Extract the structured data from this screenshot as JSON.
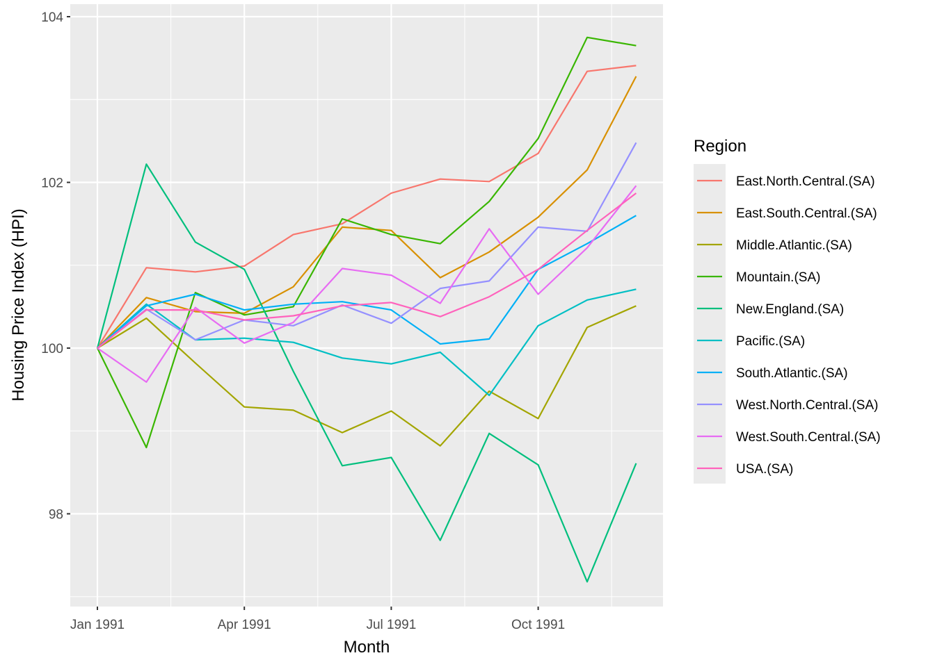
{
  "chart_data": {
    "type": "line",
    "title": "",
    "xlabel": "Month",
    "ylabel": "Housing Price Index (HPI)",
    "x": [
      "Jan 1991",
      "Feb 1991",
      "Mar 1991",
      "Apr 1991",
      "May 1991",
      "Jun 1991",
      "Jul 1991",
      "Aug 1991",
      "Sep 1991",
      "Oct 1991",
      "Nov 1991",
      "Dec 1991"
    ],
    "x_ticks": [
      "Jan 1991",
      "Apr 1991",
      "Jul 1991",
      "Oct 1991"
    ],
    "y_ticks": [
      98,
      100,
      102,
      104
    ],
    "ylim": [
      96.9,
      104.05
    ],
    "grid": true,
    "legend_title": "Region",
    "legend_position": "right",
    "series": [
      {
        "name": "East.North.Central.(SA)",
        "color": "#F8766D",
        "values": [
          100.0,
          100.97,
          100.92,
          100.99,
          101.37,
          101.5,
          101.87,
          102.04,
          102.01,
          102.35,
          103.34,
          103.41
        ]
      },
      {
        "name": "East.South.Central.(SA)",
        "color": "#D89000",
        "values": [
          100.0,
          100.61,
          100.44,
          100.42,
          100.74,
          101.46,
          101.42,
          100.85,
          101.16,
          101.58,
          102.15,
          103.28
        ]
      },
      {
        "name": "Middle.Atlantic.(SA)",
        "color": "#A3A500",
        "values": [
          100.0,
          100.36,
          99.82,
          99.29,
          99.25,
          98.98,
          99.24,
          98.82,
          99.48,
          99.15,
          100.25,
          100.51
        ]
      },
      {
        "name": "Mountain.(SA)",
        "color": "#39B600",
        "values": [
          100.0,
          98.8,
          100.67,
          100.4,
          100.5,
          101.56,
          101.37,
          101.26,
          101.77,
          102.53,
          103.75,
          103.65
        ]
      },
      {
        "name": "New.England.(SA)",
        "color": "#00BF7D",
        "values": [
          100.0,
          102.22,
          101.28,
          100.95,
          99.72,
          98.58,
          98.68,
          97.68,
          98.97,
          98.59,
          97.18,
          98.61
        ]
      },
      {
        "name": "Pacific.(SA)",
        "color": "#00BFC4",
        "values": [
          100.0,
          100.53,
          100.1,
          100.12,
          100.07,
          99.88,
          99.81,
          99.95,
          99.43,
          100.27,
          100.58,
          100.71
        ]
      },
      {
        "name": "South.Atlantic.(SA)",
        "color": "#00B0F6",
        "values": [
          100.0,
          100.51,
          100.65,
          100.46,
          100.53,
          100.56,
          100.46,
          100.05,
          100.11,
          100.95,
          101.26,
          101.6
        ]
      },
      {
        "name": "West.North.Central.(SA)",
        "color": "#9590FF",
        "values": [
          100.0,
          100.47,
          100.1,
          100.34,
          100.27,
          100.52,
          100.3,
          100.72,
          100.81,
          101.46,
          101.41,
          102.48
        ]
      },
      {
        "name": "West.South.Central.(SA)",
        "color": "#E76BF3",
        "values": [
          100.0,
          99.59,
          100.49,
          100.06,
          100.31,
          100.96,
          100.88,
          100.54,
          101.44,
          100.65,
          101.21,
          101.96
        ]
      },
      {
        "name": "USA.(SA)",
        "color": "#FF62BC",
        "values": [
          100.0,
          100.46,
          100.46,
          100.34,
          100.39,
          100.51,
          100.55,
          100.38,
          100.62,
          100.95,
          101.42,
          101.87
        ]
      }
    ]
  }
}
